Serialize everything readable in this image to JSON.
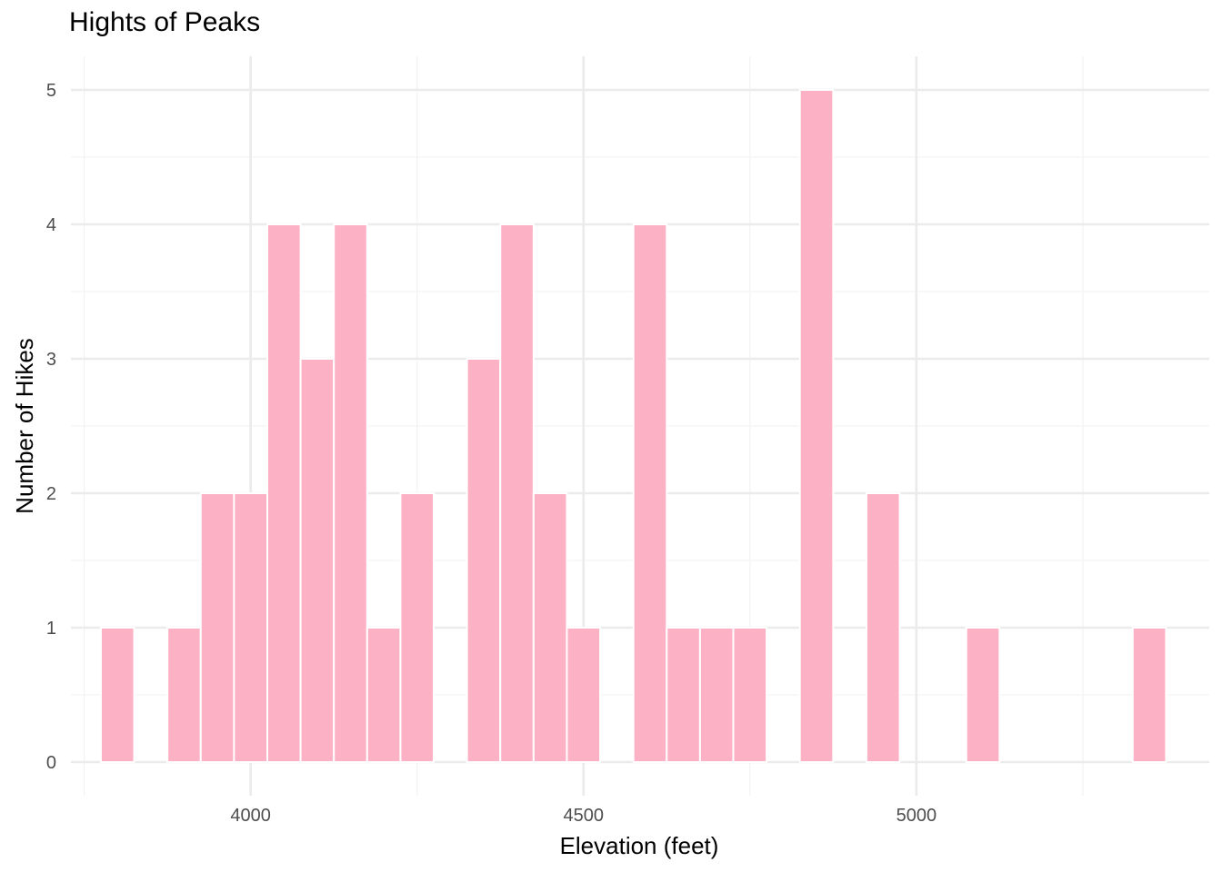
{
  "chart_data": {
    "type": "bar",
    "title": "Hights of Peaks",
    "xlabel": "Elevation (feet)",
    "ylabel": "Number of Hikes",
    "xlim": [
      3730,
      5440
    ],
    "ylim": [
      -0.25,
      5.25
    ],
    "x_ticks": [
      4000,
      4500,
      5000
    ],
    "x_tick_labels": [
      "4000",
      "4500",
      "5000"
    ],
    "x_minor_grid": [
      3750,
      4250,
      4750,
      5250
    ],
    "y_ticks": [
      0,
      1,
      2,
      3,
      4,
      5
    ],
    "y_tick_labels": [
      "0",
      "1",
      "2",
      "3",
      "4",
      "5"
    ],
    "y_minor_grid": [
      0.5,
      1.5,
      2.5,
      3.5,
      4.5
    ],
    "bin_width": 50,
    "bins": [
      {
        "x": 3800,
        "count": 1
      },
      {
        "x": 3850,
        "count": 0
      },
      {
        "x": 3900,
        "count": 1
      },
      {
        "x": 3950,
        "count": 2
      },
      {
        "x": 4000,
        "count": 2
      },
      {
        "x": 4050,
        "count": 4
      },
      {
        "x": 4100,
        "count": 3
      },
      {
        "x": 4150,
        "count": 4
      },
      {
        "x": 4200,
        "count": 1
      },
      {
        "x": 4250,
        "count": 2
      },
      {
        "x": 4300,
        "count": 0
      },
      {
        "x": 4350,
        "count": 3
      },
      {
        "x": 4400,
        "count": 4
      },
      {
        "x": 4450,
        "count": 2
      },
      {
        "x": 4500,
        "count": 1
      },
      {
        "x": 4550,
        "count": 0
      },
      {
        "x": 4600,
        "count": 4
      },
      {
        "x": 4650,
        "count": 1
      },
      {
        "x": 4700,
        "count": 1
      },
      {
        "x": 4750,
        "count": 1
      },
      {
        "x": 4800,
        "count": 0
      },
      {
        "x": 4850,
        "count": 5
      },
      {
        "x": 4900,
        "count": 0
      },
      {
        "x": 4950,
        "count": 2
      },
      {
        "x": 5000,
        "count": 0
      },
      {
        "x": 5050,
        "count": 0
      },
      {
        "x": 5100,
        "count": 1
      },
      {
        "x": 5150,
        "count": 0
      },
      {
        "x": 5200,
        "count": 0
      },
      {
        "x": 5250,
        "count": 0
      },
      {
        "x": 5300,
        "count": 0
      },
      {
        "x": 5350,
        "count": 1
      }
    ],
    "grid": true,
    "legend": "none",
    "colors": {
      "bar_fill": "#fdb1c5",
      "bar_border": "#ffffff",
      "grid_major": "#ebebeb",
      "grid_minor": "#f3f3f3",
      "tick_text": "#4d4d4d",
      "label_text": "#000000"
    }
  }
}
